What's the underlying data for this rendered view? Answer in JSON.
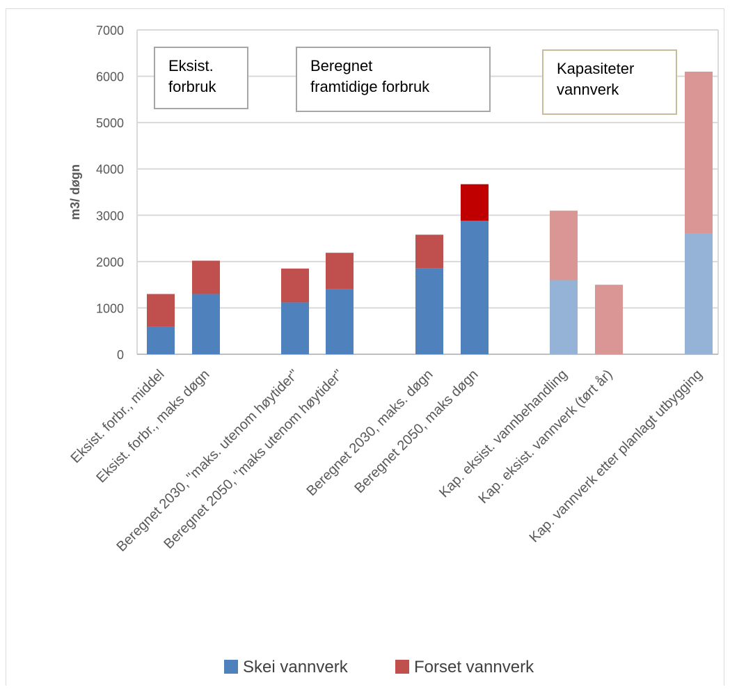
{
  "chart_data": {
    "type": "bar",
    "stacked": true,
    "ylabel": "m3/ døgn",
    "ylim": [
      0,
      7000
    ],
    "yticks": [
      0,
      1000,
      2000,
      3000,
      4000,
      5000,
      6000,
      7000
    ],
    "grid": true,
    "legend_position": "bottom",
    "categories": [
      "Eksist. forbr., middel",
      "Eksist. forbr., maks døgn",
      "Beregnet  2030, \"maks. utenom høytider\"",
      "Beregnet  2050, \"maks utenom høytider\"",
      "Beregnet 2030, maks. døgn",
      "Beregnet  2050, maks døgn",
      "Kap. eksist.  vannbehandling",
      "Kap. eksist.  vannverk (tørt år)",
      "Kap. vannverk etter planlagt utbygging"
    ],
    "series": [
      {
        "name": "Skei vannverk",
        "color": "#4f81bd",
        "values": [
          600,
          1300,
          1120,
          1400,
          1850,
          2880,
          1600,
          0,
          2600
        ]
      },
      {
        "name": "Forset vannverk",
        "color": "#c0504d",
        "values": [
          700,
          720,
          730,
          790,
          730,
          790,
          1500,
          1500,
          3500
        ]
      }
    ],
    "bar_colors": {
      "Skei vannverk": [
        "#4f81bd",
        "#4f81bd",
        "#4f81bd",
        "#4f81bd",
        "#4f81bd",
        "#4f81bd",
        "#95b3d7",
        "#95b3d7",
        "#95b3d7"
      ],
      "Forset vannverk": [
        "#c0504d",
        "#c0504d",
        "#c0504d",
        "#c0504d",
        "#c0504d",
        "#c00000",
        "#d99694",
        "#d99694",
        "#d99694"
      ]
    },
    "annotations": [
      {
        "text": "Eksist.\nforbruk",
        "border": "#a6a6a6"
      },
      {
        "text": "Beregnet\nframtidige forbruk",
        "border": "#a6a6a6"
      },
      {
        "text": "Kapasiteter\nvannverk",
        "border": "#c4bd97"
      }
    ],
    "legend": [
      "Skei vannverk",
      "Forset vannverk"
    ]
  }
}
